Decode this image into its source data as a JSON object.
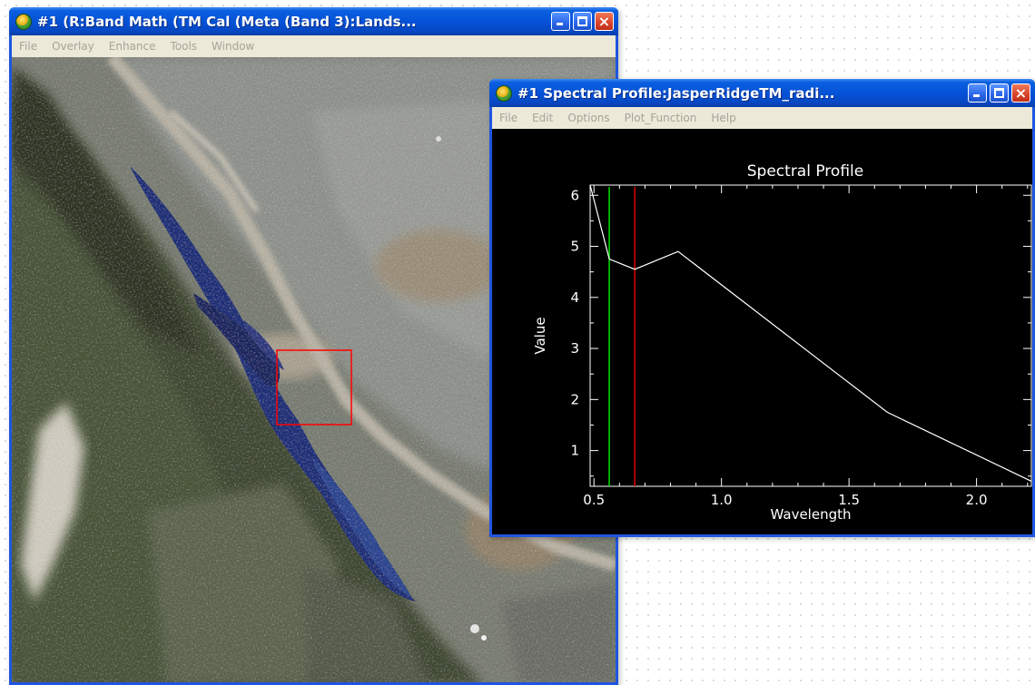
{
  "map_window": {
    "title": "#1 (R:Band Math (TM Cal (Meta (Band 3):Lands...",
    "menu": [
      "File",
      "Overlay",
      "Enhance",
      "Tools",
      "Window"
    ],
    "icons": [
      "app-globe-icon",
      "minimize-icon",
      "maximize-icon",
      "close-icon"
    ]
  },
  "profile_window": {
    "title": "#1 Spectral Profile:JasperRidgeTM_radi...",
    "menu": [
      "File",
      "Edit",
      "Options",
      "Plot_Function",
      "Help"
    ],
    "icons": [
      "app-globe-icon",
      "minimize-icon",
      "maximize-icon",
      "close-icon"
    ]
  },
  "colors": {
    "titlebar": "#0551d6",
    "menubar_text": "#a6a39a",
    "zoom_box": "#ff0000",
    "green_marker": "#00e000",
    "red_marker": "#e00000",
    "profile_line": "#ffffff",
    "plot_background": "#000000"
  },
  "chart_data": {
    "type": "line",
    "title": "Spectral Profile",
    "xlabel": "Wavelength",
    "ylabel": "Value",
    "xlim": [
      0.485,
      2.215
    ],
    "ylim": [
      0.3,
      6.2
    ],
    "x_ticks": [
      0.5,
      1.0,
      1.5,
      2.0
    ],
    "x_tick_labels": [
      "0.5",
      "1.0",
      "1.5",
      "2.0"
    ],
    "y_ticks": [
      1,
      2,
      3,
      4,
      5,
      6
    ],
    "y_tick_labels": [
      "1",
      "2",
      "3",
      "4",
      "5",
      "6"
    ],
    "series": [
      {
        "x": [
          0.485,
          0.56,
          0.66,
          0.83,
          1.65,
          2.215
        ],
        "y": [
          6.2,
          4.75,
          4.55,
          4.9,
          1.75,
          0.4
        ]
      }
    ],
    "markers": [
      {
        "x": 0.56,
        "color": "#00e000"
      },
      {
        "x": 0.66,
        "color": "#e00000"
      }
    ]
  }
}
